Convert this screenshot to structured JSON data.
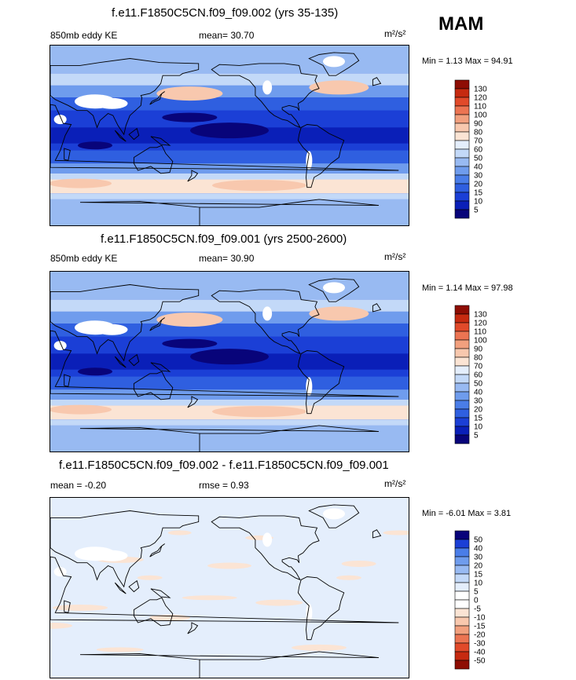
{
  "season": "MAM",
  "chart_data": [
    {
      "type": "heatmap",
      "title": "f.e11.F1850C5CN.f09_f09.002 (yrs 35-135)",
      "left_label": "850mb eddy KE",
      "center_label": "mean=  30.70",
      "units_label": "m²/s²",
      "minmax_label": "Min =   1.13 Max =  94.91",
      "stats": {
        "mean": 30.7,
        "min": 1.13,
        "max": 94.91
      },
      "levels": [
        "5",
        "10",
        "15",
        "20",
        "30",
        "40",
        "50",
        "60",
        "70",
        "80",
        "90",
        "100",
        "110",
        "120",
        "130"
      ],
      "colors": [
        "#08047a",
        "#0a1fb8",
        "#1b3fd6",
        "#2f5fe0",
        "#4a7de8",
        "#6f9ced",
        "#98baf2",
        "#c3d9f8",
        "#e4eefc",
        "#fbe4d4",
        "#f8c8ae",
        "#f2a07e",
        "#ec7452",
        "#e14a2a",
        "#c62a10",
        "#8e0d04"
      ]
    },
    {
      "type": "heatmap",
      "title": "f.e11.F1850C5CN.f09_f09.001 (yrs 2500-2600)",
      "left_label": "850mb eddy KE",
      "center_label": "mean=  30.90",
      "units_label": "m²/s²",
      "minmax_label": "Min =   1.14 Max =  97.98",
      "stats": {
        "mean": 30.9,
        "min": 1.14,
        "max": 97.98
      },
      "levels": [
        "5",
        "10",
        "15",
        "20",
        "30",
        "40",
        "50",
        "60",
        "70",
        "80",
        "90",
        "100",
        "110",
        "120",
        "130"
      ],
      "colors": [
        "#08047a",
        "#0a1fb8",
        "#1b3fd6",
        "#2f5fe0",
        "#4a7de8",
        "#6f9ced",
        "#98baf2",
        "#c3d9f8",
        "#e4eefc",
        "#fbe4d4",
        "#f8c8ae",
        "#f2a07e",
        "#ec7452",
        "#e14a2a",
        "#c62a10",
        "#8e0d04"
      ]
    },
    {
      "type": "heatmap",
      "title": "f.e11.F1850C5CN.f09_f09.002 - f.e11.F1850C5CN.f09_f09.001",
      "left_label": "mean =  -0.20",
      "center_label": "rmse =   0.93",
      "units_label": "m²/s²",
      "minmax_label": "Min =  -6.01 Max =   3.81",
      "stats": {
        "mean": -0.2,
        "rmse": 0.93,
        "min": -6.01,
        "max": 3.81
      },
      "levels": [
        "50",
        "40",
        "30",
        "20",
        "15",
        "10",
        "5",
        "0",
        "-5",
        "-10",
        "-15",
        "-20",
        "-30",
        "-40",
        "-50"
      ],
      "colors": [
        "#8e0d04",
        "#c62a10",
        "#e14a2a",
        "#ec7452",
        "#f2a07e",
        "#f8c8ae",
        "#fbe4d4",
        "#ffffff",
        "#ffffff",
        "#e4eefc",
        "#c3d9f8",
        "#98baf2",
        "#6f9ced",
        "#4a7de8",
        "#1b3fd6",
        "#08047a"
      ]
    }
  ]
}
